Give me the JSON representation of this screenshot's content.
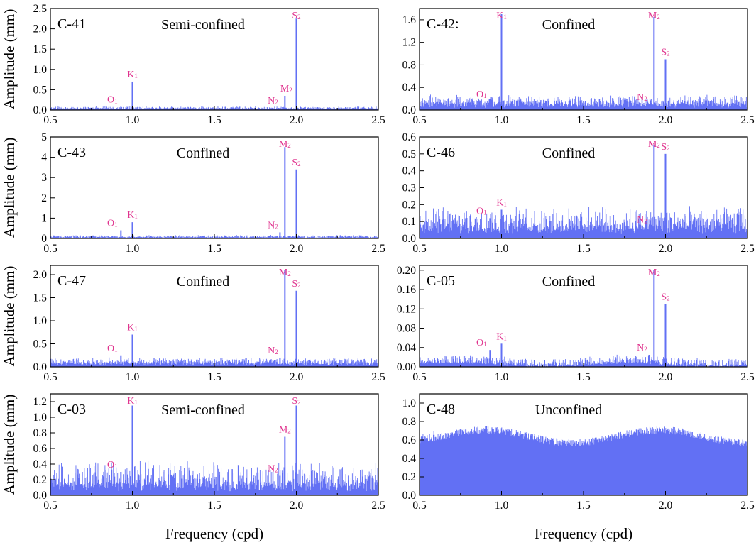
{
  "chart_data": {
    "type": "bar",
    "xlabel": "Frequency (cpd)",
    "ylabel": "Amplitude (mm)",
    "xlim": [
      0.5,
      2.5
    ],
    "xticks": [
      "0.5",
      "1.0",
      "1.5",
      "2.0",
      "2.5"
    ],
    "colors": {
      "series": "#6270F4",
      "peak_label": "#E0358F",
      "frame": "#000000"
    },
    "panels": [
      {
        "id": "C-41",
        "aquifer": "Semi-confined",
        "ylim": [
          0,
          2.5
        ],
        "yticks": [
          "0.0",
          "0.5",
          "1.0",
          "1.5",
          "2.0",
          "2.5"
        ],
        "noise": {
          "base": 0.03,
          "amp": 0.025,
          "wavy": 0
        },
        "peaks": [
          {
            "name": "O",
            "sub": "1",
            "freq": 0.93,
            "value": 0.08
          },
          {
            "name": "K",
            "sub": "1",
            "freq": 1.0,
            "value": 0.7
          },
          {
            "name": "N",
            "sub": "2",
            "freq": 1.9,
            "value": 0.05
          },
          {
            "name": "M",
            "sub": "2",
            "freq": 1.93,
            "value": 0.35
          },
          {
            "name": "S",
            "sub": "2",
            "freq": 2.0,
            "value": 2.25
          }
        ]
      },
      {
        "id": "C-42:",
        "aquifer": "Confined",
        "ylim": [
          0,
          1.8
        ],
        "yticks": [
          "0.0",
          "0.4",
          "0.8",
          "1.2",
          "1.6"
        ],
        "noise": {
          "base": 0.08,
          "amp": 0.08,
          "wavy": 0
        },
        "peaks": [
          {
            "name": "O",
            "sub": "1",
            "freq": 0.93,
            "value": 0.15
          },
          {
            "name": "K",
            "sub": "1",
            "freq": 1.0,
            "value": 1.7
          },
          {
            "name": "N",
            "sub": "2",
            "freq": 1.9,
            "value": 0.1
          },
          {
            "name": "M",
            "sub": "2",
            "freq": 1.93,
            "value": 1.65
          },
          {
            "name": "S",
            "sub": "2",
            "freq": 2.0,
            "value": 0.9
          }
        ]
      },
      {
        "id": "C-43",
        "aquifer": "Confined",
        "ylim": [
          0,
          5
        ],
        "yticks": [
          "0",
          "1",
          "2",
          "3",
          "4",
          "5"
        ],
        "noise": {
          "base": 0.05,
          "amp": 0.05,
          "wavy": 0
        },
        "peaks": [
          {
            "name": "O",
            "sub": "1",
            "freq": 0.93,
            "value": 0.4
          },
          {
            "name": "K",
            "sub": "1",
            "freq": 1.0,
            "value": 0.8
          },
          {
            "name": "N",
            "sub": "2",
            "freq": 1.9,
            "value": 0.3
          },
          {
            "name": "M",
            "sub": "2",
            "freq": 1.93,
            "value": 4.5
          },
          {
            "name": "S",
            "sub": "2",
            "freq": 2.0,
            "value": 3.4
          }
        ]
      },
      {
        "id": "C-46",
        "aquifer": "Confined",
        "ylim": [
          0,
          0.6
        ],
        "yticks": [
          "0.0",
          "0.1",
          "0.2",
          "0.3",
          "0.4",
          "0.5",
          "0.6"
        ],
        "noise": {
          "base": 0.05,
          "amp": 0.06,
          "wavy": 0
        },
        "peaks": [
          {
            "name": "O",
            "sub": "1",
            "freq": 0.93,
            "value": 0.12
          },
          {
            "name": "K",
            "sub": "1",
            "freq": 1.0,
            "value": 0.17
          },
          {
            "name": "N",
            "sub": "2",
            "freq": 1.9,
            "value": 0.07
          },
          {
            "name": "M",
            "sub": "2",
            "freq": 1.93,
            "value": 0.55
          },
          {
            "name": "S",
            "sub": "2",
            "freq": 2.0,
            "value": 0.5
          }
        ]
      },
      {
        "id": "C-47",
        "aquifer": "Confined",
        "ylim": [
          0,
          2.2
        ],
        "yticks": [
          "0.0",
          "0.5",
          "1.0",
          "1.5",
          "2.0"
        ],
        "noise": {
          "base": 0.06,
          "amp": 0.06,
          "wavy": 0
        },
        "peaks": [
          {
            "name": "O",
            "sub": "1",
            "freq": 0.93,
            "value": 0.25
          },
          {
            "name": "K",
            "sub": "1",
            "freq": 1.0,
            "value": 0.7
          },
          {
            "name": "N",
            "sub": "2",
            "freq": 1.9,
            "value": 0.2
          },
          {
            "name": "M",
            "sub": "2",
            "freq": 1.93,
            "value": 2.1
          },
          {
            "name": "S",
            "sub": "2",
            "freq": 2.0,
            "value": 1.65
          }
        ]
      },
      {
        "id": "C-05",
        "aquifer": "Confined",
        "ylim": [
          0,
          0.21
        ],
        "yticks": [
          "0.00",
          "0.04",
          "0.08",
          "0.12",
          "0.16",
          "0.20"
        ],
        "noise": {
          "base": 0.004,
          "amp": 0.008,
          "wavy": 0.004
        },
        "peaks": [
          {
            "name": "O",
            "sub": "1",
            "freq": 0.93,
            "value": 0.035
          },
          {
            "name": "K",
            "sub": "1",
            "freq": 1.0,
            "value": 0.048
          },
          {
            "name": "N",
            "sub": "2",
            "freq": 1.9,
            "value": 0.025
          },
          {
            "name": "M",
            "sub": "2",
            "freq": 1.93,
            "value": 0.2
          },
          {
            "name": "S",
            "sub": "2",
            "freq": 2.0,
            "value": 0.13
          }
        ]
      },
      {
        "id": "C-03",
        "aquifer": "Semi-confined",
        "ylim": [
          0,
          1.3
        ],
        "yticks": [
          "0.0",
          "0.2",
          "0.4",
          "0.6",
          "0.8",
          "1.0",
          "1.2"
        ],
        "noise": {
          "base": 0.1,
          "amp": 0.15,
          "wavy": 0
        },
        "peaks": [
          {
            "name": "O",
            "sub": "1",
            "freq": 0.93,
            "value": 0.3
          },
          {
            "name": "K",
            "sub": "1",
            "freq": 1.0,
            "value": 1.15
          },
          {
            "name": "N",
            "sub": "2",
            "freq": 1.9,
            "value": 0.25
          },
          {
            "name": "M",
            "sub": "2",
            "freq": 1.93,
            "value": 0.75
          },
          {
            "name": "S",
            "sub": "2",
            "freq": 2.0,
            "value": 1.15
          }
        ]
      },
      {
        "id": "C-48",
        "aquifer": "Unconfined",
        "ylim": [
          0,
          1.1
        ],
        "yticks": [
          "0.0",
          "0.2",
          "0.4",
          "0.6",
          "0.8",
          "1.0"
        ],
        "noise": {
          "base": 0.62,
          "amp": 0.06,
          "wavy": 0.07
        },
        "peaks": []
      }
    ]
  }
}
